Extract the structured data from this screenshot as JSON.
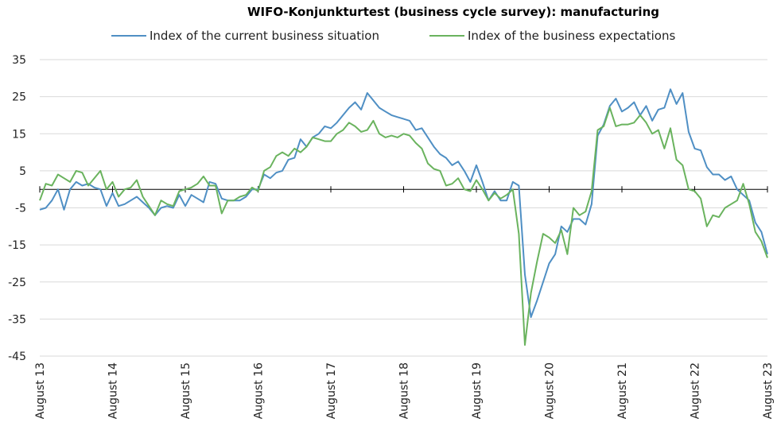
{
  "chart_data": {
    "type": "line",
    "title": "WIFO-Konjunkturtest (business cycle survey): manufacturing",
    "xlabel": "",
    "ylabel": "",
    "ylim": [
      -45,
      35
    ],
    "yticks": [
      35,
      25,
      15,
      5,
      -5,
      -15,
      -25,
      -35,
      -45
    ],
    "yticklabels": [
      "35",
      "25",
      "15",
      "5",
      "-5",
      "-15",
      "-25",
      "-35",
      "-45"
    ],
    "x_start": "August 13",
    "n_points": 121,
    "xticklabels": [
      "August 13",
      "August 14",
      "August 15",
      "August 16",
      "August 17",
      "August 18",
      "August 19",
      "August 20",
      "August 21",
      "August 22",
      "August 23"
    ],
    "xtick_index": [
      0,
      12,
      24,
      36,
      48,
      60,
      72,
      84,
      96,
      108,
      120
    ],
    "grid": "horizontal",
    "legend_position": "top",
    "series": [
      {
        "name": "Index of the current business situation",
        "color": "#4f8fc4",
        "values": [
          -5.5,
          -5,
          -3,
          0,
          -5.5,
          0,
          2,
          1,
          1.5,
          0.5,
          0,
          -4.5,
          -1,
          -4.5,
          -4,
          -3,
          -2,
          -3.5,
          -5,
          -7,
          -5,
          -4.5,
          -5,
          -1.5,
          -4.5,
          -1.5,
          -2.5,
          -3.5,
          2,
          1.5,
          -2.5,
          -3,
          -3,
          -3,
          -2,
          0,
          0,
          4,
          3,
          4.5,
          5,
          8,
          8.5,
          13.5,
          11.5,
          14,
          15,
          17,
          16.5,
          18,
          20,
          22,
          23.5,
          21.5,
          26,
          24,
          22,
          21,
          20,
          19.5,
          19,
          18.5,
          16,
          16.5,
          14,
          11.5,
          9.5,
          8.5,
          6.5,
          7.5,
          5,
          2,
          6.5,
          2,
          -3,
          -0.5,
          -3,
          -3,
          2,
          1,
          -23,
          -34.5,
          -30,
          -25,
          -20,
          -17.5,
          -10,
          -11.5,
          -8,
          -8,
          -9.5,
          -4,
          14.5,
          17.5,
          22.5,
          24.5,
          21,
          22,
          23.5,
          20,
          22.5,
          18.5,
          21.5,
          22,
          27,
          23,
          26,
          15.5,
          11,
          10.5,
          6,
          4,
          4,
          2.5,
          3.5,
          0,
          -1.5,
          -3,
          -9,
          -11.5,
          -17.5
        ]
      },
      {
        "name": "Index of the business expectations",
        "color": "#6ab35e",
        "values": [
          -3,
          1.5,
          1,
          4,
          3,
          2,
          5,
          4.5,
          1,
          3,
          5,
          0,
          2,
          -2,
          0,
          0.5,
          2.5,
          -2,
          -4.5,
          -7,
          -3,
          -4,
          -4.5,
          -0.5,
          0,
          0.5,
          1.5,
          3.5,
          1,
          1,
          -6.5,
          -3,
          -3,
          -2,
          -1.5,
          0.5,
          -0.5,
          5,
          6,
          9,
          10,
          9,
          11,
          10,
          11.5,
          14,
          13.5,
          13,
          13,
          15,
          16,
          18,
          17,
          15.5,
          16,
          18.5,
          15,
          14,
          14.5,
          14,
          15,
          14.5,
          12.5,
          11,
          7,
          5.5,
          5,
          1,
          1.5,
          3,
          0,
          -0.5,
          2.5,
          0,
          -3,
          -1,
          -2.5,
          -1.5,
          0,
          -12,
          -42,
          -28,
          -19.5,
          -12,
          -13,
          -14.5,
          -11,
          -17.5,
          -5,
          -7,
          -6,
          -0.5,
          16,
          17,
          22,
          17,
          17.5,
          17.5,
          18,
          20,
          18,
          15,
          16,
          11,
          16.5,
          8,
          6.5,
          0,
          -0.5,
          -2.5,
          -10,
          -7,
          -7.5,
          -5,
          -4,
          -3,
          1.5,
          -4,
          -11.5,
          -14,
          -18.5
        ]
      }
    ]
  }
}
